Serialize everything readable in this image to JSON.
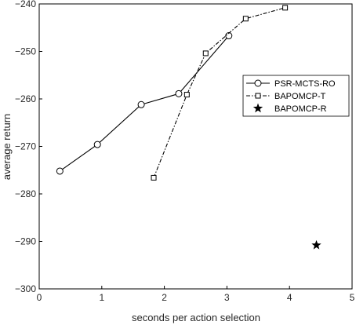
{
  "chart_data": {
    "type": "line",
    "xlabel": "seconds per action selection",
    "ylabel": "average return",
    "xlim": [
      0,
      5
    ],
    "ylim": [
      -300,
      -240
    ],
    "xticks": [
      0,
      1,
      2,
      3,
      4,
      5
    ],
    "yticks": [
      -300,
      -290,
      -280,
      -270,
      -260,
      -250,
      -240
    ],
    "grid": false,
    "legend_position": "right",
    "series": [
      {
        "name": "PSR-MCTS-RO",
        "marker": "circle",
        "line": "solid",
        "color": "#000000",
        "x": [
          0.33,
          0.93,
          1.63,
          2.23,
          3.03
        ],
        "y": [
          -275.2,
          -269.6,
          -261.2,
          -258.9,
          -246.7
        ]
      },
      {
        "name": "BAPOMCP-T",
        "marker": "square",
        "line": "dashdot",
        "color": "#000000",
        "x": [
          1.83,
          2.36,
          2.66,
          3.3,
          3.93
        ],
        "y": [
          -276.6,
          -259.1,
          -250.4,
          -243.1,
          -240.8
        ]
      },
      {
        "name": "BAPOMCP-R",
        "marker": "star",
        "line": "none",
        "color": "#000000",
        "x": [
          4.43
        ],
        "y": [
          -290.8
        ]
      }
    ]
  }
}
